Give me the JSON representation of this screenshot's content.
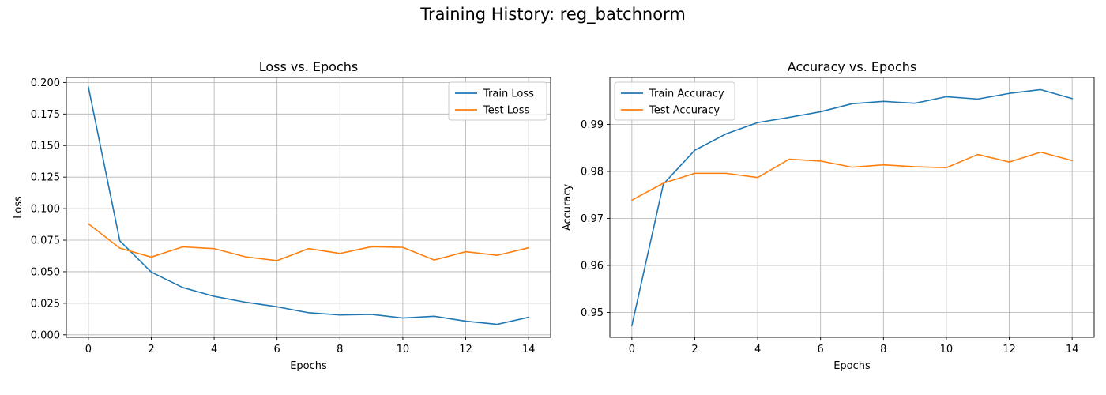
{
  "figure": {
    "suptitle": "Training History: reg_batchnorm"
  },
  "chart_data": [
    {
      "type": "line",
      "title": "Loss vs. Epochs",
      "xlabel": "Epochs",
      "ylabel": "Loss",
      "x": [
        0,
        1,
        2,
        3,
        4,
        5,
        6,
        7,
        8,
        9,
        10,
        11,
        12,
        13,
        14
      ],
      "xlim": [
        -0.7,
        14.7
      ],
      "ylim": [
        -0.002,
        0.204
      ],
      "xticks": [
        0,
        2,
        4,
        6,
        8,
        10,
        12,
        14
      ],
      "yticks": [
        0.0,
        0.025,
        0.05,
        0.075,
        0.1,
        0.125,
        0.15,
        0.175,
        0.2
      ],
      "ytick_labels": [
        "0.000",
        "0.025",
        "0.050",
        "0.075",
        "0.100",
        "0.125",
        "0.150",
        "0.175",
        "0.200"
      ],
      "grid": true,
      "legend_loc": "upper right",
      "series": [
        {
          "name": "Train Loss",
          "color": "#1f77b4",
          "values": [
            0.1965,
            0.0745,
            0.0497,
            0.0375,
            0.0305,
            0.0258,
            0.0222,
            0.0175,
            0.0157,
            0.0162,
            0.0133,
            0.0147,
            0.0108,
            0.0083,
            0.0139
          ]
        },
        {
          "name": "Test Loss",
          "color": "#ff7f0e",
          "values": [
            0.088,
            0.0687,
            0.0616,
            0.0697,
            0.0683,
            0.0618,
            0.0588,
            0.0683,
            0.0645,
            0.0698,
            0.0693,
            0.0593,
            0.0659,
            0.063,
            0.069
          ]
        }
      ]
    },
    {
      "type": "line",
      "title": "Accuracy vs. Epochs",
      "xlabel": "Epochs",
      "ylabel": "Accuracy",
      "x": [
        0,
        1,
        2,
        3,
        4,
        5,
        6,
        7,
        8,
        9,
        10,
        11,
        12,
        13,
        14
      ],
      "xlim": [
        -0.7,
        14.7
      ],
      "ylim": [
        0.9447,
        1.0
      ],
      "xticks": [
        0,
        2,
        4,
        6,
        8,
        10,
        12,
        14
      ],
      "yticks": [
        0.95,
        0.96,
        0.97,
        0.98,
        0.99
      ],
      "ytick_labels": [
        "0.95",
        "0.96",
        "0.97",
        "0.98",
        "0.99"
      ],
      "grid": true,
      "legend_loc": "upper left",
      "series": [
        {
          "name": "Train Accuracy",
          "color": "#1f77b4",
          "values": [
            0.9472,
            0.9773,
            0.9845,
            0.988,
            0.9904,
            0.9915,
            0.9927,
            0.9944,
            0.9949,
            0.9945,
            0.9959,
            0.9954,
            0.9966,
            0.9974,
            0.9955
          ]
        },
        {
          "name": "Test Accuracy",
          "color": "#ff7f0e",
          "values": [
            0.9739,
            0.9775,
            0.9796,
            0.9796,
            0.9787,
            0.9826,
            0.9822,
            0.9809,
            0.9814,
            0.981,
            0.9808,
            0.9836,
            0.982,
            0.9841,
            0.9823
          ]
        }
      ]
    }
  ]
}
